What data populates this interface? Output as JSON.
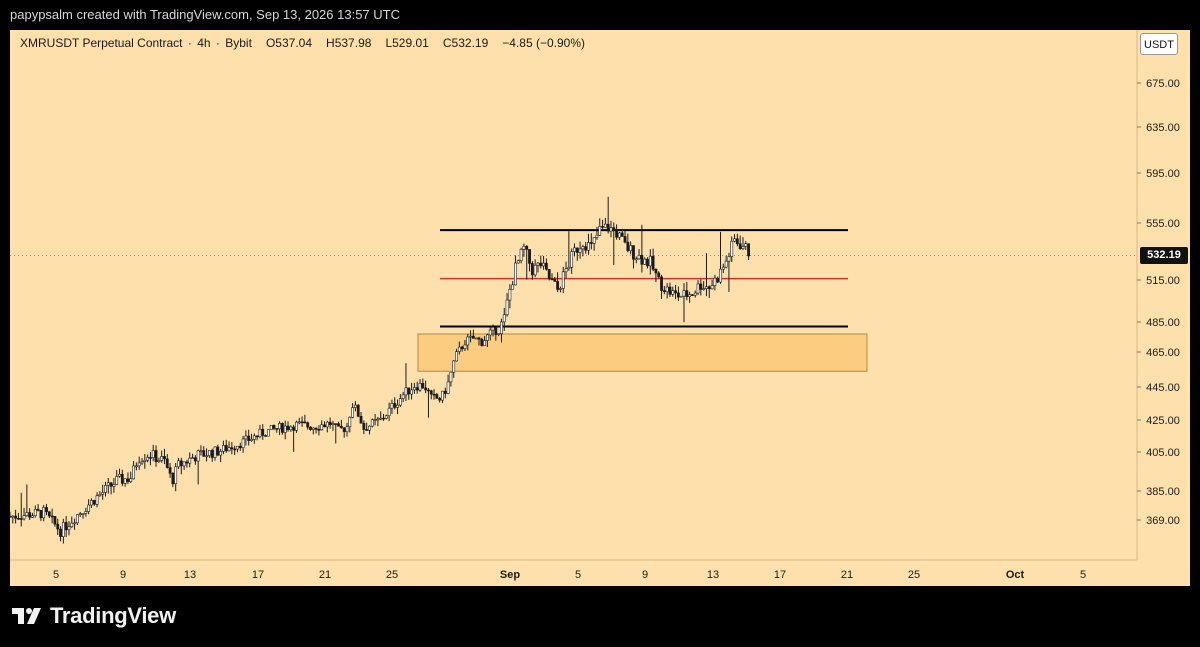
{
  "header": {
    "credit": "papypsalm created with TradingView.com, Sep 13, 2026 13:57 UTC"
  },
  "legend": {
    "symbol": "XMRUSDT Perpetual Contract",
    "interval": "4h",
    "exchange": "Bybit",
    "open": "O537.04",
    "high": "H537.98",
    "low": "L529.01",
    "close": "C532.19",
    "change": "−4.85 (−0.90%)"
  },
  "currency": "USDT",
  "current_price": "532.19",
  "logo_text": "TradingView",
  "colors": {
    "background": "#fde0ac",
    "candle": "#1b1b1b",
    "range_lines": "#000000",
    "mid_line": "#d32f2f",
    "demand_zone": "#fcc878"
  },
  "chart_data": {
    "type": "candlestick",
    "y_ticks": [
      "675.00",
      "635.00",
      "595.00",
      "555.00",
      "515.00",
      "485.00",
      "465.00",
      "445.00",
      "425.00",
      "405.00",
      "385.00",
      "369.00"
    ],
    "x_ticks": [
      "5",
      "9",
      "13",
      "17",
      "21",
      "25",
      "Sep",
      "5",
      "9",
      "13",
      "17",
      "21",
      "25",
      "Oct",
      "5"
    ],
    "range_high": 550,
    "range_mid": 516,
    "range_low": 482,
    "zone": {
      "top": 477,
      "bottom": 454
    },
    "current": 532.19,
    "trend_close": [
      [
        0,
        371
      ],
      [
        2.0,
        373
      ],
      [
        3.0,
        363
      ],
      [
        4.0,
        372
      ],
      [
        5.2,
        382
      ],
      [
        6.3,
        390
      ],
      [
        7.2,
        392
      ],
      [
        7.6,
        402
      ],
      [
        8.3,
        404
      ],
      [
        9.2,
        400
      ],
      [
        9.6,
        390
      ],
      [
        10.0,
        398
      ],
      [
        11.0,
        403
      ],
      [
        12.5,
        406
      ],
      [
        14.0,
        412
      ],
      [
        15.0,
        417
      ],
      [
        16.0,
        420
      ],
      [
        17.0,
        422
      ],
      [
        18.0,
        421
      ],
      [
        19.0,
        423
      ],
      [
        19.5,
        418
      ],
      [
        20.0,
        421
      ],
      [
        20.3,
        435
      ],
      [
        20.7,
        428
      ],
      [
        21.0,
        420
      ],
      [
        22.0,
        425
      ],
      [
        22.6,
        432
      ],
      [
        23.3,
        440
      ],
      [
        24.0,
        446
      ],
      [
        24.6,
        446
      ],
      [
        25.0,
        438
      ],
      [
        25.6,
        438
      ],
      [
        26.0,
        447
      ],
      [
        26.4,
        461
      ],
      [
        27.0,
        472
      ],
      [
        27.5,
        474
      ],
      [
        28.0,
        472
      ],
      [
        28.5,
        477
      ],
      [
        29.0,
        481
      ],
      [
        29.3,
        485
      ],
      [
        29.6,
        505
      ],
      [
        30.0,
        523
      ],
      [
        30.5,
        537
      ],
      [
        31.0,
        522
      ],
      [
        31.5,
        526
      ],
      [
        32.0,
        516
      ],
      [
        32.5,
        508
      ],
      [
        33.0,
        522
      ],
      [
        33.5,
        535
      ],
      [
        34.0,
        542
      ],
      [
        34.5,
        538
      ],
      [
        35.0,
        550
      ],
      [
        35.5,
        552
      ],
      [
        36.0,
        548
      ],
      [
        36.5,
        539
      ],
      [
        37.0,
        534
      ],
      [
        37.5,
        530
      ],
      [
        38.0,
        527
      ],
      [
        38.5,
        514
      ],
      [
        39.0,
        508
      ],
      [
        39.5,
        504
      ],
      [
        40.0,
        504
      ],
      [
        40.5,
        506
      ],
      [
        41.0,
        512
      ],
      [
        41.5,
        510
      ],
      [
        42.0,
        517
      ],
      [
        42.5,
        528
      ],
      [
        43.0,
        543
      ],
      [
        43.5,
        539
      ],
      [
        43.9,
        534
      ]
    ]
  }
}
